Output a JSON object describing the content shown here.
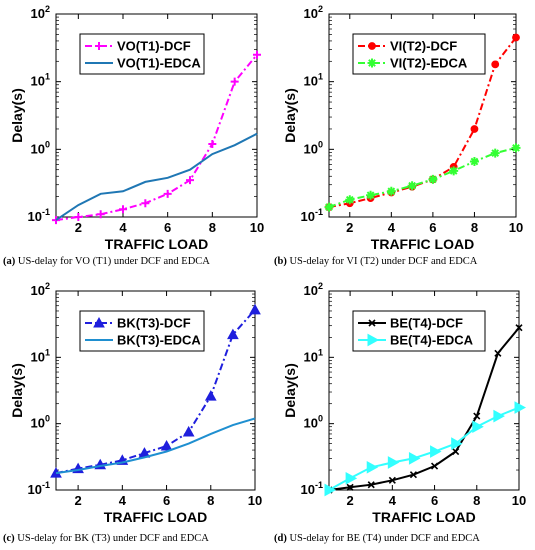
{
  "chart_data": [
    {
      "type": "line",
      "caption": {
        "letter": "(a)",
        "text": " US-delay for VO (T1) under DCF and EDCA"
      },
      "xlabel": "TRAFFIC LOAD",
      "ylabel": "Delay(s)",
      "xlim": [
        1,
        10
      ],
      "ylim": [
        0.1,
        100
      ],
      "yscale": "log",
      "xticks": [
        2,
        4,
        6,
        8,
        10
      ],
      "yticks": [
        0.1,
        1,
        10,
        100
      ],
      "legend_position": "top-left",
      "x": [
        1,
        2,
        3,
        4,
        5,
        6,
        7,
        8,
        9,
        10
      ],
      "series": [
        {
          "name": "VO(T1)-DCF",
          "color": "#ff00ff",
          "dash": "dashdot",
          "marker": "plus",
          "values": [
            0.09,
            0.1,
            0.11,
            0.13,
            0.16,
            0.22,
            0.35,
            1.2,
            10,
            25
          ]
        },
        {
          "name": "VO(T1)-EDCA",
          "color": "#1f77b4",
          "dash": "solid",
          "marker": "none",
          "values": [
            0.09,
            0.15,
            0.22,
            0.24,
            0.33,
            0.38,
            0.5,
            0.85,
            1.15,
            1.7
          ]
        }
      ]
    },
    {
      "type": "line",
      "caption": {
        "letter": "(b)",
        "text": " US-delay for VI (T2) under DCF and EDCA"
      },
      "xlabel": "TRAFFIC LOAD",
      "ylabel": "Delay(s)",
      "xlim": [
        1,
        10
      ],
      "ylim": [
        0.1,
        100
      ],
      "yscale": "log",
      "xticks": [
        2,
        4,
        6,
        8,
        10
      ],
      "yticks": [
        0.1,
        1,
        10,
        100
      ],
      "legend_position": "top-left",
      "x": [
        1,
        2,
        3,
        4,
        5,
        6,
        7,
        8,
        9,
        10
      ],
      "series": [
        {
          "name": "VI(T2)-DCF",
          "color": "#ff0000",
          "dash": "dashdot",
          "marker": "circle",
          "values": [
            0.14,
            0.16,
            0.19,
            0.23,
            0.28,
            0.36,
            0.55,
            2.0,
            18,
            45
          ]
        },
        {
          "name": "VI(T2)-EDCA",
          "color": "#33ff33",
          "dash": "dashdot",
          "marker": "star",
          "values": [
            0.14,
            0.18,
            0.21,
            0.24,
            0.29,
            0.36,
            0.48,
            0.66,
            0.88,
            1.05
          ]
        }
      ]
    },
    {
      "type": "line",
      "caption": {
        "letter": "(c)",
        "text": " US-delay for BK (T3) under DCF and EDCA"
      },
      "xlabel": "TRAFFIC LOAD",
      "ylabel": "Delay(s)",
      "xlim": [
        1,
        10
      ],
      "ylim": [
        0.1,
        100
      ],
      "yscale": "log",
      "xticks": [
        2,
        4,
        6,
        8,
        10
      ],
      "yticks": [
        0.1,
        1,
        10,
        100
      ],
      "legend_position": "top-left",
      "x": [
        1,
        2,
        3,
        4,
        5,
        6,
        7,
        8,
        9,
        10
      ],
      "series": [
        {
          "name": "BK(T3)-DCF",
          "color": "#1f1fdd",
          "dash": "dashdot",
          "marker": "triangle",
          "values": [
            0.18,
            0.21,
            0.24,
            0.28,
            0.36,
            0.46,
            0.75,
            2.6,
            22,
            52
          ]
        },
        {
          "name": "BK(T3)-EDCA",
          "color": "#1f8fd0",
          "dash": "solid",
          "marker": "none",
          "values": [
            0.18,
            0.2,
            0.23,
            0.26,
            0.31,
            0.38,
            0.5,
            0.7,
            0.95,
            1.2
          ]
        }
      ]
    },
    {
      "type": "line",
      "caption": {
        "letter": "(d)",
        "text": " US-delay for BE (T4) under DCF and EDCA"
      },
      "xlabel": "TRAFFIC LOAD",
      "ylabel": "Delay(s)",
      "xlim": [
        1,
        10
      ],
      "ylim": [
        0.1,
        100
      ],
      "yscale": "log",
      "xticks": [
        2,
        4,
        6,
        8,
        10
      ],
      "yticks": [
        0.1,
        1,
        10,
        100
      ],
      "legend_position": "top-left",
      "x": [
        1,
        2,
        3,
        4,
        5,
        6,
        7,
        8,
        9,
        10
      ],
      "series": [
        {
          "name": "BE(T4)-DCF",
          "color": "#000000",
          "dash": "solid",
          "marker": "x",
          "values": [
            0.1,
            0.11,
            0.12,
            0.14,
            0.17,
            0.23,
            0.38,
            1.3,
            11.5,
            28
          ]
        },
        {
          "name": "BE(T4)-EDCA",
          "color": "#33ffff",
          "dash": "solid",
          "marker": "triangle-right",
          "values": [
            0.1,
            0.15,
            0.22,
            0.26,
            0.3,
            0.38,
            0.5,
            0.9,
            1.3,
            1.75
          ]
        }
      ]
    }
  ]
}
